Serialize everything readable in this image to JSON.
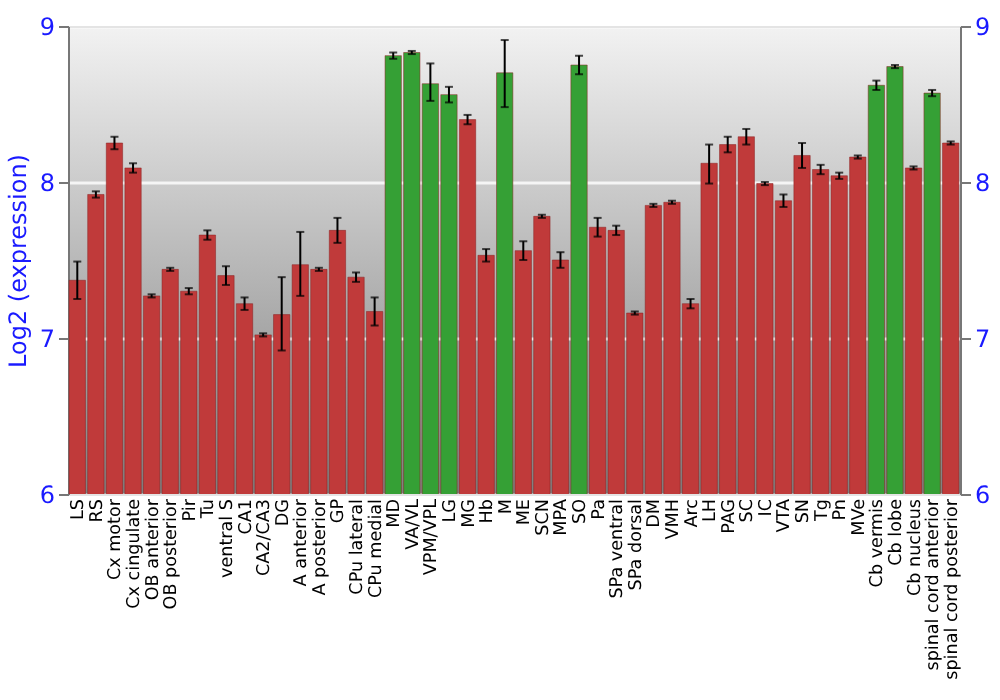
{
  "chart_data": {
    "type": "bar",
    "ylabel": "Log2 (expression)",
    "categories": [
      "LS",
      "RS",
      "Cx motor",
      "Cx cingulate",
      "OB anterior",
      "OB posterior",
      "Pir",
      "Tu",
      "ventral S",
      "CA1",
      "CA2/CA3",
      "DG",
      "A anterior",
      "A posterior",
      "GP",
      "CPu lateral",
      "CPu medial",
      "MD",
      "VA/VL",
      "VPM/VPL",
      "LG",
      "MG",
      "Hb",
      "M",
      "ME",
      "SCN",
      "MPA",
      "SO",
      "Pa",
      "SPa ventral",
      "SPa dorsal",
      "DM",
      "VMH",
      "Arc",
      "LH",
      "PAG",
      "SC",
      "IC",
      "VTA",
      "SN",
      "Tg",
      "Pn",
      "MVe",
      "Cb vermis",
      "Cb lobe",
      "Cb nucleus",
      "spinal cord anterior",
      "spinal cord posterior"
    ],
    "values": [
      7.37,
      7.92,
      8.25,
      8.09,
      7.27,
      7.44,
      7.3,
      7.66,
      7.4,
      7.22,
      7.02,
      7.15,
      7.47,
      7.44,
      7.69,
      7.39,
      7.17,
      8.81,
      8.83,
      8.63,
      8.56,
      8.4,
      7.53,
      8.7,
      7.56,
      7.78,
      7.5,
      8.75,
      7.71,
      7.69,
      7.16,
      7.85,
      7.87,
      7.22,
      8.12,
      8.24,
      8.29,
      7.99,
      7.88,
      8.17,
      8.08,
      8.04,
      8.16,
      8.62,
      8.74,
      8.09,
      8.57,
      8.25
    ],
    "errors": [
      0.12,
      0.02,
      0.04,
      0.03,
      0.01,
      0.01,
      0.02,
      0.03,
      0.06,
      0.04,
      0.01,
      [
        6.92,
        7.39
      ],
      [
        7.27,
        7.68
      ],
      0.01,
      0.08,
      0.03,
      0.09,
      0.02,
      0.01,
      [
        8.52,
        8.76
      ],
      0.05,
      0.03,
      0.04,
      [
        8.48,
        8.91
      ],
      0.06,
      0.01,
      0.05,
      0.06,
      0.06,
      0.03,
      0.01,
      0.01,
      0.01,
      0.03,
      [
        7.99,
        8.24
      ],
      0.05,
      0.05,
      0.01,
      0.04,
      0.08,
      0.03,
      0.02,
      0.01,
      0.03,
      0.01,
      0.01,
      0.02,
      0.01
    ],
    "colors": [
      "#c03a3a",
      "#c03a3a",
      "#c03a3a",
      "#c03a3a",
      "#c03a3a",
      "#c03a3a",
      "#c03a3a",
      "#c03a3a",
      "#c03a3a",
      "#c03a3a",
      "#c03a3a",
      "#c03a3a",
      "#c03a3a",
      "#c03a3a",
      "#c03a3a",
      "#c03a3a",
      "#c03a3a",
      "#35a035",
      "#35a035",
      "#35a035",
      "#35a035",
      "#c03a3a",
      "#c03a3a",
      "#35a035",
      "#c03a3a",
      "#c03a3a",
      "#c03a3a",
      "#35a035",
      "#c03a3a",
      "#c03a3a",
      "#c03a3a",
      "#c03a3a",
      "#c03a3a",
      "#c03a3a",
      "#c03a3a",
      "#c03a3a",
      "#c03a3a",
      "#c03a3a",
      "#c03a3a",
      "#c03a3a",
      "#c03a3a",
      "#c03a3a",
      "#c03a3a",
      "#35a035",
      "#35a035",
      "#c03a3a",
      "#35a035",
      "#c03a3a"
    ],
    "ylim": [
      6,
      9
    ],
    "yticks": [
      6,
      7,
      8,
      9
    ],
    "y2lim": [
      6,
      9
    ],
    "y2ticks": [
      6,
      7,
      8,
      9
    ],
    "grid": "y"
  }
}
